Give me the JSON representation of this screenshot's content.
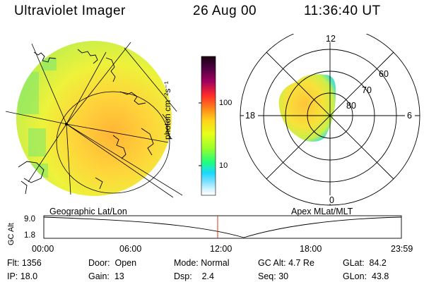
{
  "header": {
    "instrument": "Ultraviolet Imager",
    "date": "26 Aug 00",
    "time": "11:36:40 UT"
  },
  "colorbar": {
    "unit_label": "photon cm⁻²s⁻¹",
    "ticks": [
      "100",
      "10"
    ],
    "colors": [
      "#1a0010",
      "#4a0040",
      "#a00060",
      "#ff2a2a",
      "#ff8a1a",
      "#ffd21a",
      "#e6ff1a",
      "#9aff2a",
      "#22ff7a",
      "#1ad8ff",
      "#7adfff",
      "#d8f6ff",
      "#ffffff"
    ]
  },
  "geo_panel": {
    "caption": "Geographic Lat/Lon"
  },
  "polar_panel": {
    "caption": "Apex MLat/MLT",
    "mlt_labels": [
      "12",
      "18",
      "6",
      "0"
    ],
    "mlat_labels": [
      "60",
      "70",
      "80"
    ]
  },
  "altitude_plot": {
    "ylabel": "GC Alt",
    "yticks": [
      "9.0",
      "1.8"
    ],
    "xticks": [
      "00:00",
      "06:00",
      "12:00",
      "18:00",
      "23:59"
    ],
    "marker_time": "11:36"
  },
  "status": {
    "flt": {
      "label": "Flt:",
      "value": "1356"
    },
    "ip": {
      "label": "IP:",
      "value": "18.0"
    },
    "door": {
      "label": "Door:",
      "value": "Open"
    },
    "gain": {
      "label": "Gain:",
      "value": "13"
    },
    "mode": {
      "label": "Mode:",
      "value": "Normal"
    },
    "dsp": {
      "label": "Dsp:",
      "value": "2.4"
    },
    "gcalt": {
      "label": "GC Alt:",
      "value": "4.7 Re"
    },
    "seq": {
      "label": "Seq:",
      "value": "30"
    },
    "glat": {
      "label": "GLat:",
      "value": "84.2"
    },
    "glon": {
      "label": "GLon:",
      "value": "43.8"
    }
  },
  "colors": {
    "orbit_marker": "#cc2200",
    "grid": "#000000"
  }
}
